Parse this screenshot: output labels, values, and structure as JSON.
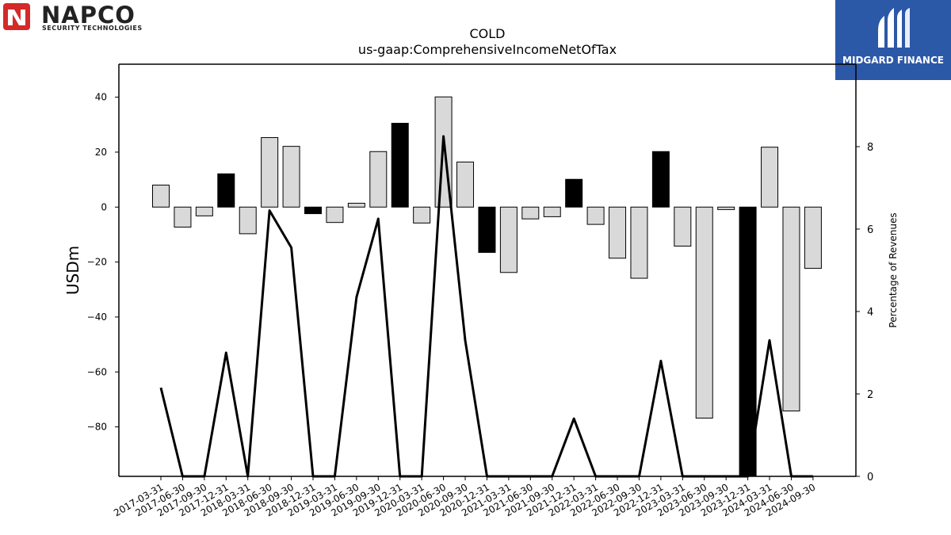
{
  "logos": {
    "left_name": "NAPCO",
    "left_tagline": "SECURITY TECHNOLOGIES",
    "right_name": "MIDGARD FINANCE"
  },
  "chart_data": {
    "type": "bar",
    "title": "COLD",
    "subtitle": "us-gaap:ComprehensiveIncomeNetOfTax",
    "ylabel": "USDm",
    "y2label": "Percentage of Revenues",
    "ylim": [
      -98,
      52
    ],
    "y2lim": [
      0,
      10
    ],
    "yticks": [
      -80,
      -60,
      -40,
      -20,
      0,
      20,
      40
    ],
    "y2ticks": [
      0,
      2,
      4,
      6,
      8
    ],
    "grid": false,
    "categories": [
      "2017-03-31",
      "2017-06-30",
      "2017-09-30",
      "2017-12-31",
      "2018-03-31",
      "2018-06-30",
      "2018-09-30",
      "2018-12-31",
      "2019-03-31",
      "2019-06-30",
      "2019-09-30",
      "2019-12-31",
      "2020-03-31",
      "2020-06-30",
      "2020-09-30",
      "2020-12-31",
      "2021-03-31",
      "2021-06-30",
      "2021-09-30",
      "2021-12-31",
      "2022-03-31",
      "2022-06-30",
      "2022-09-30",
      "2022-12-31",
      "2023-03-31",
      "2023-06-30",
      "2023-09-30",
      "2023-12-31",
      "2024-03-31",
      "2024-06-30",
      "2024-09-30"
    ],
    "series": [
      {
        "kind": "bar",
        "values": [
          8.0,
          -7.3,
          -3.2,
          12.1,
          -9.7,
          25.3,
          22.1,
          -2.4,
          -5.6,
          1.4,
          20.2,
          30.5,
          -5.8,
          40.1,
          16.4,
          -16.5,
          -23.8,
          -4.3,
          -3.5,
          10.1,
          -6.3,
          -18.6,
          -25.9,
          20.2,
          -14.2,
          -76.8,
          -0.9,
          -98.0,
          21.8,
          -74.2,
          -22.3
        ],
        "highlight": [
          false,
          false,
          false,
          true,
          false,
          false,
          false,
          true,
          false,
          false,
          false,
          true,
          false,
          false,
          false,
          true,
          false,
          false,
          false,
          true,
          false,
          false,
          false,
          true,
          false,
          false,
          false,
          true,
          false,
          false,
          false
        ],
        "colors": {
          "normal": "#d9d9d9",
          "highlight": "#000000",
          "edge": "#000000"
        }
      },
      {
        "kind": "line",
        "axis": "right",
        "color": "#000000",
        "values": [
          2.15,
          0.0,
          0.0,
          3.0,
          0.0,
          6.45,
          5.55,
          0.0,
          0.0,
          4.35,
          6.25,
          0.0,
          0.0,
          8.25,
          3.3,
          0.0,
          0.0,
          0.0,
          0.0,
          1.4,
          0.0,
          0.0,
          0.0,
          2.8,
          0.0,
          0.0,
          0.0,
          0.0,
          3.3,
          0.0,
          0.0
        ]
      }
    ]
  }
}
